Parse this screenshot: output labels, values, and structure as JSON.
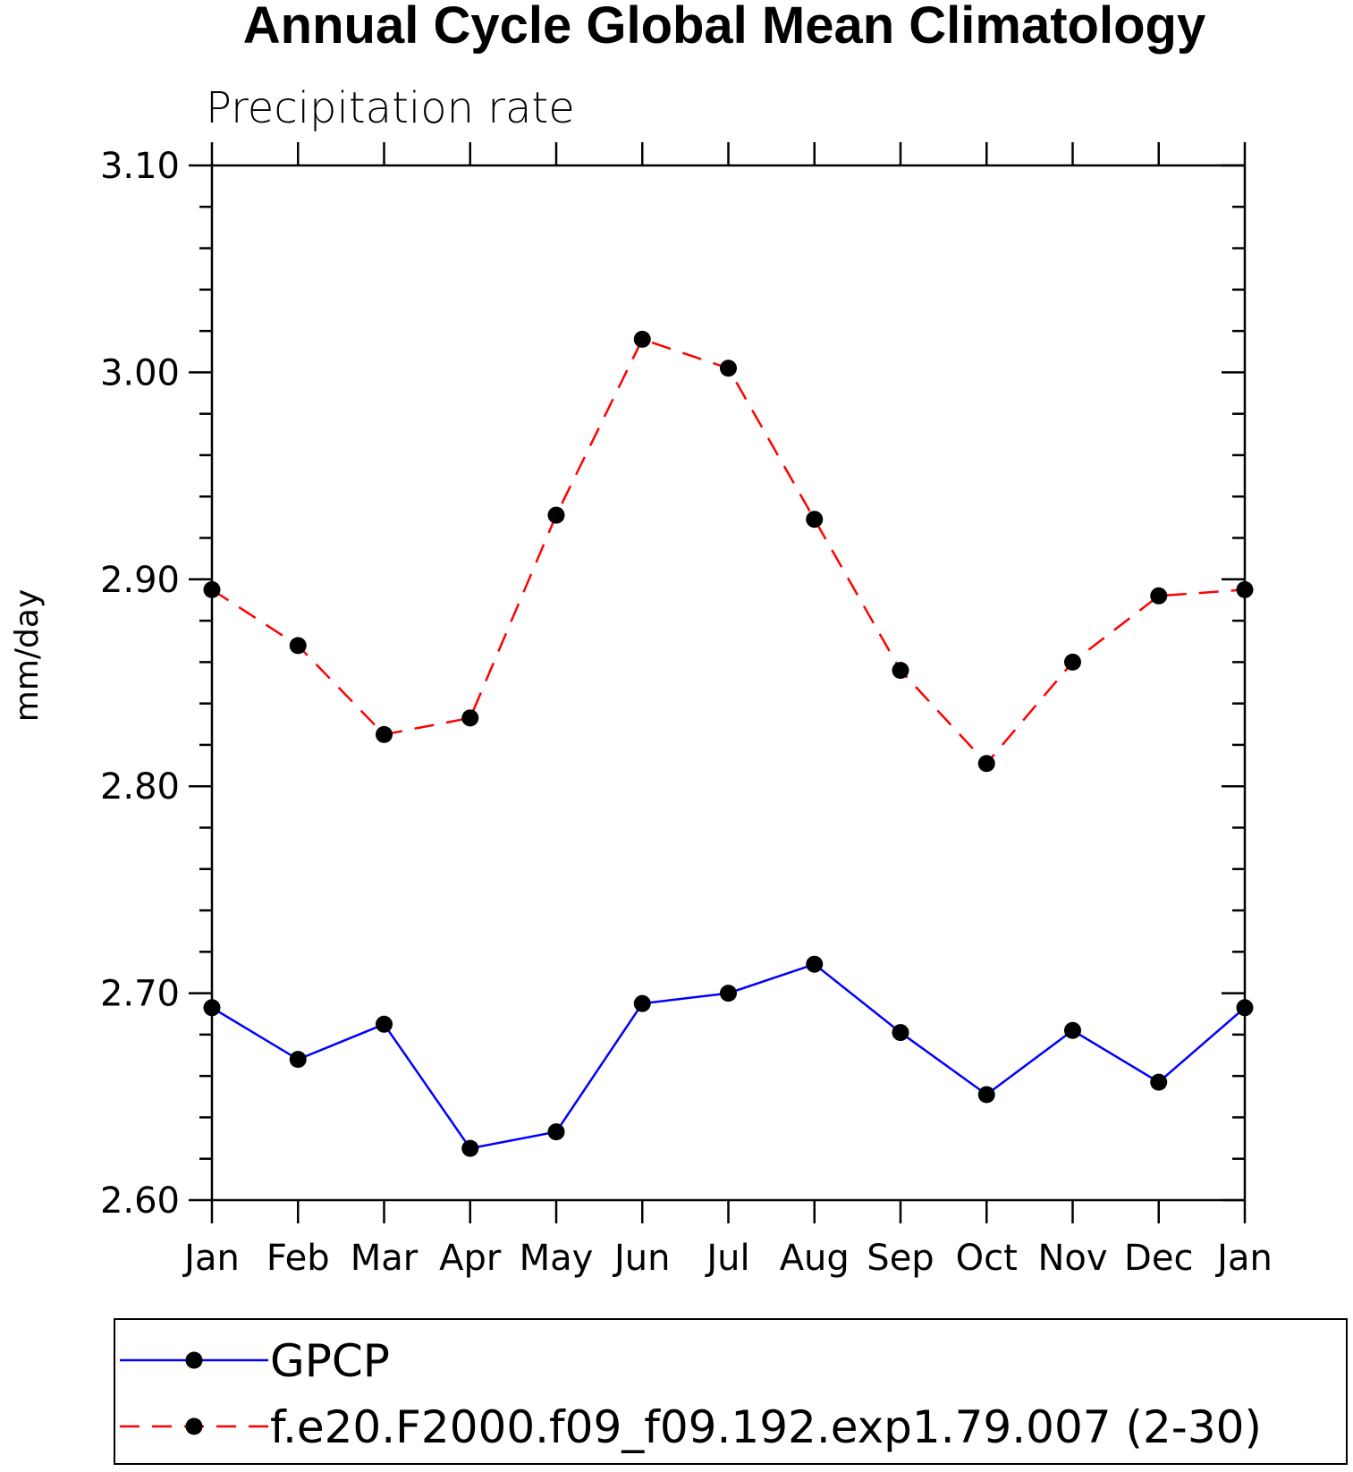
{
  "chart_data": {
    "type": "line",
    "title": "Annual Cycle Global Mean Climatology",
    "subtitle": "Precipitation rate",
    "xlabel": "",
    "ylabel": "mm/day",
    "categories": [
      "Jan",
      "Feb",
      "Mar",
      "Apr",
      "May",
      "Jun",
      "Jul",
      "Aug",
      "Sep",
      "Oct",
      "Nov",
      "Dec",
      "Jan"
    ],
    "ylim": [
      2.6,
      3.1
    ],
    "yticks": [
      "2.60",
      "2.70",
      "2.80",
      "2.90",
      "3.00",
      "3.10"
    ],
    "grid": false,
    "legend_position": "bottom",
    "series": [
      {
        "name": "GPCP",
        "color": "#0000ff",
        "line_style": "solid",
        "marker": "filled-circle",
        "values": [
          2.693,
          2.668,
          2.685,
          2.625,
          2.633,
          2.695,
          2.7,
          2.714,
          2.681,
          2.651,
          2.682,
          2.657,
          2.693
        ]
      },
      {
        "name": "f.e20.F2000.f09_f09.192.exp1.79.007 (2-30)",
        "color": "#ff0000",
        "line_style": "dashed",
        "marker": "filled-circle",
        "values": [
          2.895,
          2.868,
          2.825,
          2.833,
          2.931,
          3.016,
          3.002,
          2.929,
          2.856,
          2.811,
          2.86,
          2.892,
          2.895
        ]
      }
    ]
  }
}
